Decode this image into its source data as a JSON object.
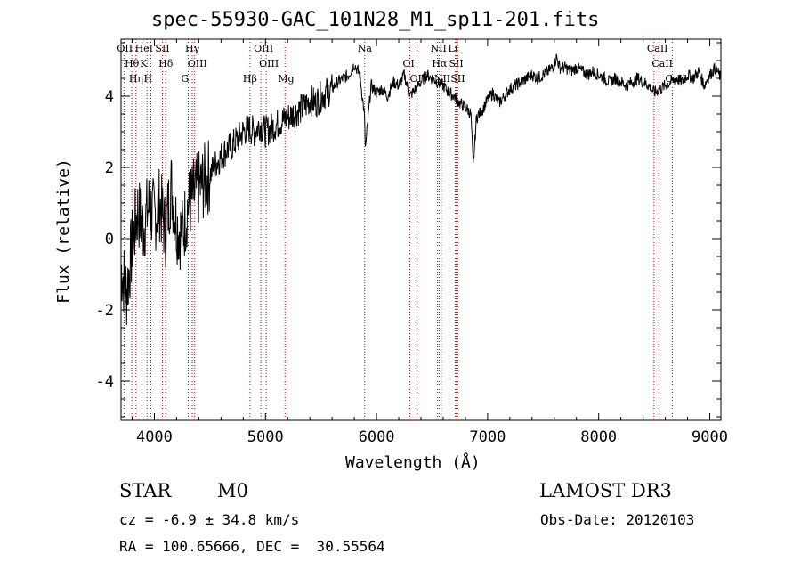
{
  "chart_data": {
    "type": "line",
    "title": "spec-55930-GAC_101N28_M1_sp11-201.fits",
    "xlabel": "Wavelength (Å)",
    "ylabel": "Flux (relative)",
    "xlim": [
      3700,
      9100
    ],
    "ylim": [
      -5.1,
      5.6
    ],
    "xticks": [
      4000,
      5000,
      6000,
      7000,
      8000,
      9000
    ],
    "yticks": [
      -4,
      -2,
      0,
      2,
      4
    ],
    "series": [
      {
        "name": "flux",
        "x": [
          3700,
          3750,
          3800,
          3850,
          3900,
          3950,
          4000,
          4050,
          4100,
          4150,
          4200,
          4250,
          4300,
          4350,
          4400,
          4450,
          4500,
          4550,
          4600,
          4650,
          4700,
          4750,
          4800,
          4850,
          4900,
          4950,
          5000,
          5050,
          5100,
          5150,
          5200,
          5250,
          5300,
          5350,
          5400,
          5450,
          5500,
          5550,
          5600,
          5650,
          5700,
          5750,
          5800,
          5850,
          5890,
          5900,
          5950,
          6000,
          6050,
          6100,
          6150,
          6200,
          6250,
          6300,
          6350,
          6400,
          6450,
          6500,
          6550,
          6600,
          6650,
          6700,
          6750,
          6800,
          6850,
          6870,
          6900,
          6950,
          7000,
          7050,
          7100,
          7150,
          7200,
          7250,
          7300,
          7350,
          7400,
          7450,
          7500,
          7550,
          7600,
          7620,
          7650,
          7700,
          7750,
          7800,
          7850,
          7900,
          7950,
          8000,
          8050,
          8100,
          8150,
          8200,
          8250,
          8300,
          8350,
          8400,
          8450,
          8500,
          8550,
          8600,
          8650,
          8700,
          8750,
          8800,
          8850,
          8900,
          8950,
          9000,
          9050,
          9100
        ],
        "y": [
          -0.8,
          -1.5,
          -0.2,
          0.8,
          0.3,
          0.9,
          0.6,
          1.0,
          0.2,
          1.5,
          0.4,
          0.1,
          0.9,
          1.2,
          1.4,
          1.6,
          1.8,
          2.1,
          2.3,
          2.5,
          2.6,
          2.8,
          3.0,
          3.1,
          3.0,
          3.2,
          3.0,
          3.1,
          3.2,
          3.3,
          3.4,
          3.5,
          3.6,
          3.7,
          3.9,
          3.8,
          4.0,
          4.1,
          4.2,
          4.4,
          4.5,
          4.6,
          4.9,
          4.6,
          3.5,
          2.5,
          4.3,
          4.1,
          4.2,
          4.0,
          4.4,
          4.3,
          4.6,
          4.0,
          4.2,
          4.4,
          4.6,
          4.5,
          4.4,
          4.3,
          4.1,
          4.0,
          3.8,
          3.7,
          3.5,
          2.0,
          3.4,
          3.6,
          3.9,
          4.1,
          3.8,
          4.0,
          4.2,
          4.3,
          4.4,
          4.5,
          4.6,
          4.5,
          4.6,
          4.7,
          4.9,
          5.1,
          4.8,
          4.8,
          4.7,
          4.8,
          4.7,
          4.6,
          4.7,
          4.6,
          4.5,
          4.4,
          4.5,
          4.4,
          4.3,
          4.4,
          4.5,
          4.4,
          4.3,
          4.1,
          4.2,
          4.3,
          4.4,
          4.5,
          4.4,
          4.6,
          4.5,
          4.7,
          4.3,
          4.6,
          4.8,
          4.5
        ]
      }
    ],
    "lines": [
      {
        "name": "OII",
        "x": 3727
      },
      {
        "name": "Hθ",
        "x": 3797
      },
      {
        "name": "Hη",
        "x": 3835
      },
      {
        "name": "HeI",
        "x": 3889
      },
      {
        "name": "K",
        "x": 3934
      },
      {
        "name": "H",
        "x": 3968
      },
      {
        "name": "SII",
        "x": 4072
      },
      {
        "name": "Hδ",
        "x": 4102
      },
      {
        "name": "G",
        "x": 4305
      },
      {
        "name": "Hγ",
        "x": 4341
      },
      {
        "name": "OIII",
        "x": 4363
      },
      {
        "name": "Hβ",
        "x": 4861
      },
      {
        "name": "OIII",
        "x": 4959
      },
      {
        "name": "OIII",
        "x": 5007
      },
      {
        "name": "Mg",
        "x": 5176
      },
      {
        "name": "Na",
        "x": 5893
      },
      {
        "name": "OI",
        "x": 6300
      },
      {
        "name": "OI",
        "x": 6364
      },
      {
        "name": "NII",
        "x": 6548
      },
      {
        "name": "Hα",
        "x": 6563
      },
      {
        "name": "NII",
        "x": 6583
      },
      {
        "name": "Li",
        "x": 6708
      },
      {
        "name": "SII",
        "x": 6716
      },
      {
        "name": "SII",
        "x": 6731
      },
      {
        "name": "CaII",
        "x": 8498
      },
      {
        "name": "CaII",
        "x": 8542
      },
      {
        "name": "CaII",
        "x": 8662
      }
    ],
    "annotations": [
      "STAR",
      "M0",
      "LAMOST DR3",
      "cz = -6.9 ± 34.8 km/s",
      "Obs-Date: 20120103",
      "RA = 100.65666, DEC =  30.55564"
    ]
  },
  "info": {
    "class": "STAR",
    "subclass": "M0",
    "survey": "LAMOST DR3",
    "cz": "cz = -6.9 ± 34.8 km/s",
    "obsdate": "Obs-Date: 20120103",
    "coords": "RA = 100.65666, DEC =  30.55564"
  },
  "colors": {
    "line": "#000000",
    "marker": "#cc0000"
  }
}
